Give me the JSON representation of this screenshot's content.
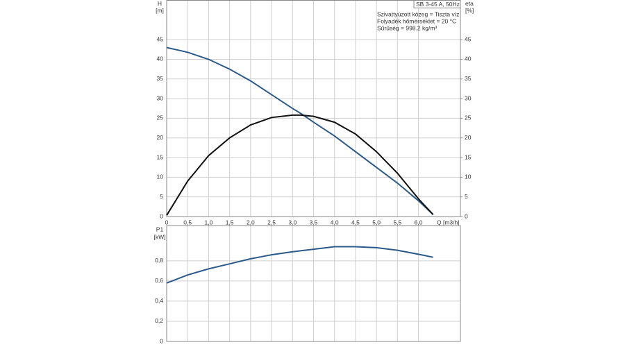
{
  "chart_data": [
    {
      "type": "line",
      "annotations": [
        "SB 3-45 A, 50Hz",
        "Szivattyúzott közeg = Tiszta víz",
        "Folyadék hőmérséklet = 20 °C",
        "Sűrűség = 998.2 kg/m³"
      ],
      "y_label": "H",
      "y_unit": "[m]",
      "y2_label": "eta",
      "y2_unit": "[%]",
      "x_label": "Q [m3/h]",
      "x": [
        0,
        0.5,
        1.0,
        1.5,
        2.0,
        2.5,
        3.0,
        3.2,
        3.5,
        4.0,
        4.5,
        5.0,
        5.5,
        6.0,
        6.35
      ],
      "series": [
        {
          "name": "H",
          "color": "#2b5a8a",
          "axis": "y",
          "values": [
            43,
            41.8,
            40,
            37.5,
            34.5,
            31,
            27.5,
            26.2,
            24,
            20.5,
            16.5,
            12.5,
            8.5,
            4,
            0.5
          ]
        },
        {
          "name": "eta",
          "color": "#111111",
          "axis": "y2",
          "values": [
            0.3,
            9,
            15.5,
            20,
            23.3,
            25.2,
            25.8,
            25.8,
            25.5,
            24,
            21,
            16.5,
            11,
            4.5,
            0.5
          ]
        }
      ],
      "xlim": [
        0,
        7
      ],
      "xticks": [
        0,
        {
          "value": 0.5,
          "label": "0,5"
        },
        {
          "value": 1.0,
          "label": "1,0"
        },
        {
          "value": 1.5,
          "label": "1,5"
        },
        {
          "value": 2.0,
          "label": "2,0"
        },
        {
          "value": 2.5,
          "label": "2,5"
        },
        {
          "value": 3.0,
          "label": "3,0"
        },
        {
          "value": 3.5,
          "label": "3,5"
        },
        {
          "value": 4.0,
          "label": "4,0"
        },
        {
          "value": 4.5,
          "label": "4,5"
        },
        {
          "value": 5.0,
          "label": "5,0"
        },
        {
          "value": 5.5,
          "label": "5,5"
        },
        {
          "value": 6.0,
          "label": "6,0"
        }
      ],
      "ylim": [
        0,
        55
      ],
      "yticks": [
        0,
        5,
        10,
        15,
        20,
        25,
        30,
        35,
        40,
        45
      ],
      "y2lim": [
        0,
        55
      ],
      "y2ticks": [
        0,
        5,
        10,
        15,
        20,
        25,
        30,
        35,
        40,
        45
      ],
      "grid": true
    },
    {
      "type": "line",
      "y_label": "P1",
      "y_unit": "[kW]",
      "x": [
        0,
        0.5,
        1.0,
        1.5,
        2.0,
        2.5,
        3.0,
        3.5,
        4.0,
        4.5,
        5.0,
        5.5,
        6.0,
        6.35
      ],
      "series": [
        {
          "name": "P1",
          "color": "#2b5a8a",
          "axis": "y",
          "values": [
            0.58,
            0.66,
            0.72,
            0.77,
            0.82,
            0.86,
            0.89,
            0.915,
            0.94,
            0.94,
            0.93,
            0.905,
            0.865,
            0.835
          ]
        }
      ],
      "xlim": [
        0,
        7
      ],
      "xticks": [
        0,
        0.5,
        1.0,
        1.5,
        2.0,
        2.5,
        3.0,
        3.5,
        4.0,
        4.5,
        5.0,
        5.5,
        6.0
      ],
      "ylim": [
        0,
        1.15
      ],
      "yticks": [
        0,
        {
          "value": 0.2,
          "label": "0,2"
        },
        {
          "value": 0.4,
          "label": "0,4"
        },
        {
          "value": 0.6,
          "label": "0,6"
        },
        {
          "value": 0.8,
          "label": "0,8"
        }
      ],
      "grid": true
    }
  ]
}
